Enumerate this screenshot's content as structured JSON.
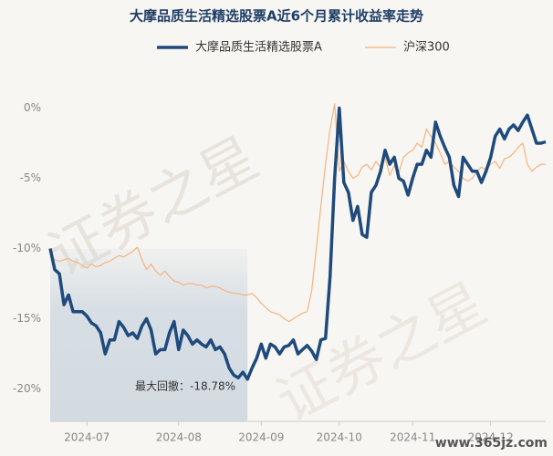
{
  "chart_data": {
    "type": "line",
    "title": "大摩品质生活精选股票A近6个月累计收益率走势",
    "watermarks": [
      "证券之星",
      "www.365jz.com"
    ],
    "annotation": "最大回撤：-18.78%",
    "categories": [
      null,
      null,
      null,
      null,
      null,
      null,
      null,
      null,
      "2024-07",
      null,
      null,
      null,
      null,
      null,
      null,
      null,
      null,
      null,
      null,
      null,
      null,
      null,
      null,
      null,
      null,
      null,
      null,
      null,
      "2024-08",
      null,
      null,
      null,
      null,
      null,
      null,
      null,
      null,
      null,
      null,
      null,
      null,
      null,
      null,
      null,
      null,
      null,
      "2024-09",
      null,
      null,
      null,
      null,
      null,
      null,
      null,
      null,
      null,
      null,
      null,
      null,
      null,
      null,
      null,
      null,
      "2024-10",
      null,
      null,
      null,
      null,
      null,
      null,
      null,
      null,
      null,
      null,
      null,
      null,
      null,
      null,
      null,
      "2024-11",
      null,
      null,
      null,
      null,
      null,
      null,
      null,
      null,
      null,
      null,
      null,
      null,
      null,
      null,
      null,
      null,
      "2024-12",
      null,
      null,
      null,
      null,
      null,
      null,
      null,
      null,
      null,
      null,
      null,
      null
    ],
    "series": [
      {
        "name": "大摩品质生活精选股票A",
        "color": "#1f4a7c",
        "width": 3.5,
        "values": [
          -10,
          -11.5,
          -11.8,
          -14,
          -13.3,
          -14.5,
          -14.5,
          -14.5,
          -14.8,
          -15.3,
          -15.5,
          -16,
          -17.5,
          -16.5,
          -16.5,
          -15.2,
          -15.6,
          -16.2,
          -16,
          -16.4,
          -15.5,
          -15,
          -15.8,
          -17.5,
          -17.2,
          -17.2,
          -16,
          -15.2,
          -17.2,
          -15.8,
          -16.2,
          -16.8,
          -16.5,
          -16.8,
          -17,
          -16.5,
          -17.2,
          -17,
          -17.5,
          -18.5,
          -19,
          -19.2,
          -18.8,
          -19.3,
          -18.5,
          -17.8,
          -16.8,
          -17.8,
          -16.8,
          -17,
          -17.5,
          -17,
          -16.9,
          -16.5,
          -17.5,
          -17.2,
          -16.9,
          -17.3,
          -17.9,
          -16.5,
          -16.4,
          -12,
          -5,
          0,
          -5.3,
          -6,
          -8,
          -7,
          -9,
          -9.2,
          -6,
          -5.5,
          -4.5,
          -3,
          -4,
          -3.5,
          -5,
          -5.2,
          -6.2,
          -5,
          -4,
          -4,
          -3,
          -3.5,
          -1,
          -2,
          -2.8,
          -3.5,
          -5.5,
          -6.3,
          -3.5,
          -4,
          -4.5,
          -4.5,
          -5.3,
          -4.5,
          -3.5,
          -2,
          -1.5,
          -2.2,
          -1.5,
          -1.2,
          -1.6,
          -1,
          -0.5,
          -1.5,
          -2.5,
          -2.5,
          -2.4
        ]
      },
      {
        "name": "沪深300",
        "color": "#f2b481",
        "width": 1.2,
        "values": [
          -10.6,
          -10.8,
          -10.9,
          -10.8,
          -10.7,
          -10.9,
          -11,
          -11.2,
          -11.4,
          -11.1,
          -11.3,
          -11.2,
          -11,
          -10.9,
          -10.7,
          -10.5,
          -10.6,
          -10.4,
          -10.2,
          -9.9,
          -10.8,
          -11.5,
          -11.1,
          -11.6,
          -11.9,
          -11.6,
          -12,
          -12.3,
          -12.4,
          -12.6,
          -12.5,
          -12.5,
          -12.6,
          -12.6,
          -12.8,
          -12.7,
          -12.7,
          -12.8,
          -13,
          -13.1,
          -13.2,
          -13.2,
          -13.3,
          -13.3,
          -13.2,
          -13.5,
          -13.9,
          -14.2,
          -14.5,
          -14.6,
          -14.7,
          -15,
          -15.2,
          -15,
          -14.8,
          -14.6,
          -14.5,
          -13,
          -10,
          -7,
          -4,
          -1.5,
          0.3,
          -4.5,
          -3.8,
          -4.5,
          -5,
          -4.8,
          -4.2,
          -4,
          -4.4,
          -3.8,
          -4.2,
          -3.5,
          -4.8,
          -4.1,
          -4.6,
          -3.5,
          -3.2,
          -3,
          -2.5,
          -2.8,
          -1.5,
          -2,
          -2.5,
          -3.2,
          -4,
          -3.8,
          -4.2,
          -4.5,
          -5,
          -5.2,
          -5,
          -4.5,
          -4.2,
          -4.4,
          -4,
          -3.8,
          -4.3,
          -3.6,
          -3.5,
          -3.2,
          -2.8,
          -2.5,
          -4,
          -4.5,
          -4.2,
          -4,
          -4
        ]
      }
    ],
    "drawdown": {
      "start": 0,
      "end": 43
    },
    "ylim": [
      -22.3,
      1.2
    ],
    "yticks": [
      {
        "value": 0,
        "label": "0%"
      },
      {
        "value": -5,
        "label": "-5%"
      },
      {
        "value": -10,
        "label": "-10%"
      },
      {
        "value": -15,
        "label": "-15%"
      },
      {
        "value": -20,
        "label": "-20%"
      }
    ],
    "grid": false
  }
}
